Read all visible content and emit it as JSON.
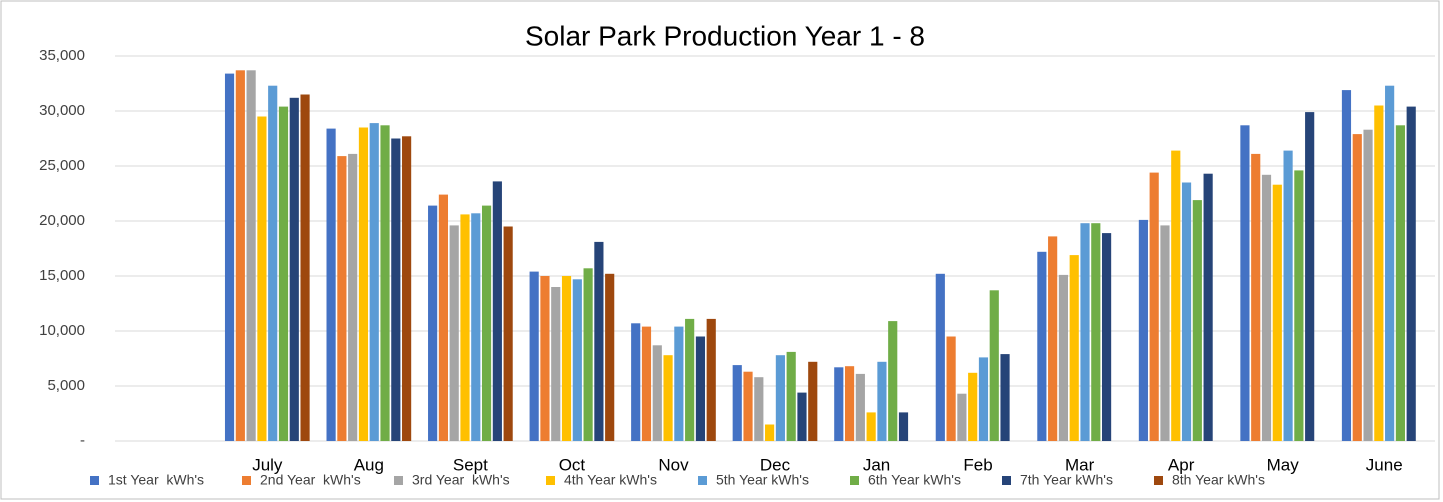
{
  "chart_data": {
    "type": "bar",
    "title": "Solar Park Production Year 1 - 8",
    "categories": [
      null,
      "July",
      "Aug",
      "Sept",
      "Oct",
      "Nov",
      "Dec",
      "Jan",
      "Feb",
      "Mar",
      "Apr",
      "May",
      "June"
    ],
    "series": [
      {
        "name": "1st Year  kWh's",
        "color": "#4472c4",
        "values": [
          null,
          33400,
          28400,
          21400,
          15400,
          10700,
          6900,
          6700,
          15200,
          17200,
          20100,
          28700,
          31900
        ]
      },
      {
        "name": "2nd Year  kWh's",
        "color": "#ed7d31",
        "values": [
          null,
          33700,
          25900,
          22400,
          15000,
          10400,
          6300,
          6800,
          9500,
          18600,
          24400,
          26100,
          27900
        ]
      },
      {
        "name": "3rd Year  kWh's",
        "color": "#a5a5a5",
        "values": [
          null,
          33700,
          26100,
          19600,
          14000,
          8700,
          5800,
          6100,
          4300,
          15100,
          19600,
          24200,
          28300
        ]
      },
      {
        "name": "4th Year kWh's",
        "color": "#ffc000",
        "values": [
          null,
          29500,
          28500,
          20600,
          15000,
          7800,
          1500,
          2600,
          6200,
          16900,
          26400,
          23300,
          30500
        ]
      },
      {
        "name": "5th Year kWh's",
        "color": "#5b9bd5",
        "values": [
          null,
          32300,
          28900,
          20700,
          14700,
          10400,
          7800,
          7200,
          7600,
          19800,
          23500,
          26400,
          32300
        ]
      },
      {
        "name": "6th Year kWh's",
        "color": "#70ad47",
        "values": [
          null,
          30400,
          28700,
          21400,
          15700,
          11100,
          8100,
          10900,
          13700,
          19800,
          21900,
          24600,
          28700
        ]
      },
      {
        "name": "7th Year kWh's",
        "color": "#264478",
        "values": [
          null,
          31200,
          27500,
          23600,
          18100,
          9500,
          4400,
          2600,
          7900,
          18900,
          24300,
          29900,
          30400
        ]
      },
      {
        "name": "8th Year kWh's",
        "color": "#9e480e",
        "values": [
          null,
          31500,
          27700,
          19500,
          15200,
          11100,
          7200,
          null,
          null,
          null,
          null,
          null,
          null
        ]
      }
    ],
    "ylim": [
      0,
      35000
    ],
    "yticks": [
      {
        "value": 0,
        "label": "-"
      },
      {
        "value": 5000,
        "label": "5,000"
      },
      {
        "value": 10000,
        "label": "10,000"
      },
      {
        "value": 15000,
        "label": "15,000"
      },
      {
        "value": 20000,
        "label": "20,000"
      },
      {
        "value": 25000,
        "label": "25,000"
      },
      {
        "value": 30000,
        "label": "30,000"
      },
      {
        "value": 35000,
        "label": "35,000"
      }
    ],
    "grid": true,
    "legend": "bottom"
  }
}
